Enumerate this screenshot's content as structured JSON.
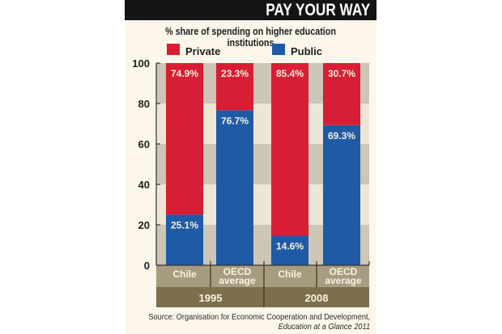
{
  "header": {
    "banner": "PAY YOUR WAY",
    "subtitle": "% share of spending on higher education institutions"
  },
  "chart_data": {
    "type": "bar",
    "stacked": true,
    "title": "PAY YOUR WAY",
    "subtitle": "% share of spending on higher education institutions",
    "xlabel": "",
    "ylabel": "",
    "ylim": [
      0,
      100
    ],
    "yticks": [
      0,
      20,
      40,
      60,
      80,
      100
    ],
    "grid": "alternating horizontal bands",
    "legend_position": "top",
    "categories": [
      "Chile",
      "OECD average",
      "Chile",
      "OECD average"
    ],
    "category_lines": [
      [
        "Chile"
      ],
      [
        "OECD",
        "average"
      ],
      [
        "Chile"
      ],
      [
        "OECD",
        "average"
      ]
    ],
    "groups": [
      {
        "label": "1995",
        "categories": [
          0,
          1
        ]
      },
      {
        "label": "2008",
        "categories": [
          2,
          3
        ]
      }
    ],
    "series": [
      {
        "name": "Public",
        "color": "#1f5aa6",
        "values": [
          25.1,
          76.7,
          14.6,
          69.3
        ],
        "labels": [
          "25.1%",
          "76.7%",
          "14.6%",
          "69.3%"
        ]
      },
      {
        "name": "Private",
        "color": "#d81e34",
        "values": [
          74.9,
          23.3,
          85.4,
          30.7
        ],
        "labels": [
          "74.9%",
          "23.3%",
          "85.4%",
          "30.7%"
        ]
      }
    ],
    "legend": [
      {
        "name": "Private",
        "color": "#d81e34"
      },
      {
        "name": "Public",
        "color": "#1f5aa6"
      }
    ]
  },
  "colors": {
    "band_dark": "#cdc5b5",
    "band_light": "#ede6d6",
    "category_strip": "#a89c80",
    "year_strip": "#7d6f4e",
    "banner_bg": "#141414",
    "panel_bg": "#fdf6ea"
  },
  "source": {
    "line1": "Source: Organisation for Economic Cooperation and Development,",
    "line2": "Education at a Glance 2011"
  }
}
